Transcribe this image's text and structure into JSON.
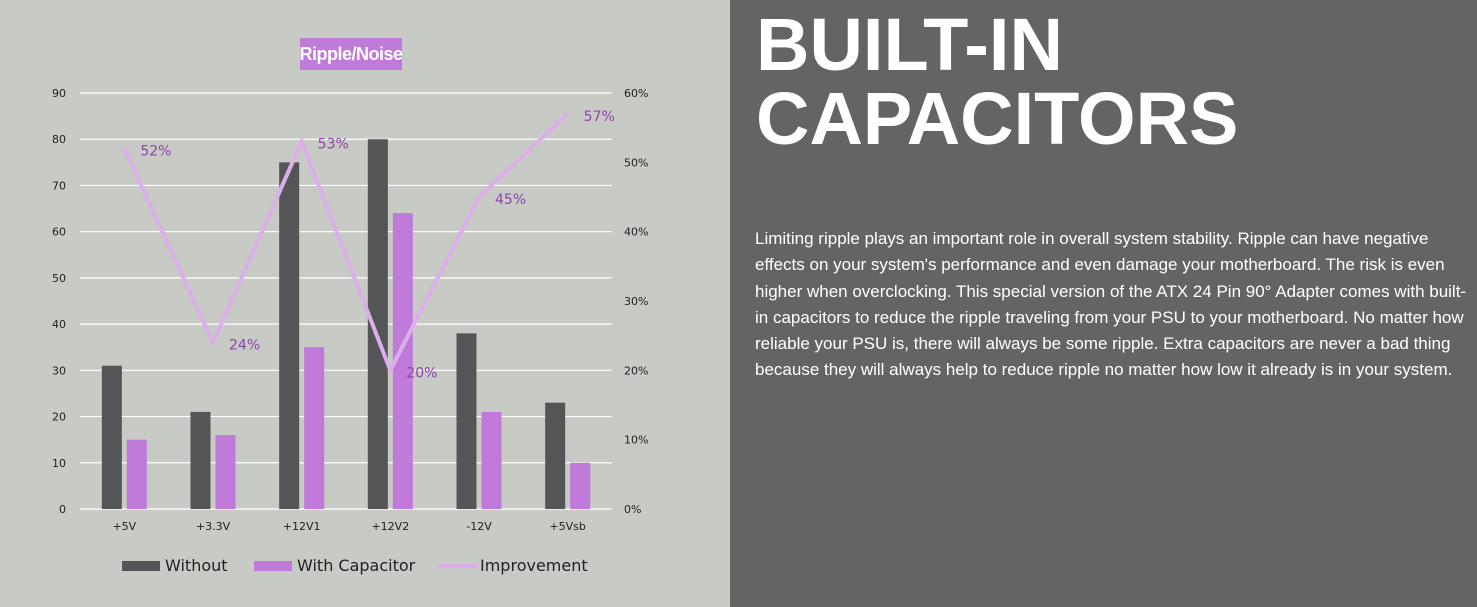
{
  "chart_data": {
    "type": "bar",
    "title": "Ripple/Noise",
    "categories": [
      "+5V",
      "+3.3V",
      "+12V1",
      "+12V2",
      "-12V",
      "+5Vsb"
    ],
    "series": [
      {
        "name": "Without",
        "type": "bar",
        "values": [
          31,
          21,
          75,
          80,
          38,
          23
        ],
        "color": "#545557"
      },
      {
        "name": "With Capacitor",
        "type": "bar",
        "values": [
          15,
          16,
          35,
          64,
          21,
          10
        ],
        "color": "#c07ad9"
      },
      {
        "name": "Improvement",
        "type": "line",
        "axis": "right",
        "values": [
          52,
          24,
          53,
          20,
          45,
          57
        ],
        "labels": [
          "52%",
          "24%",
          "53%",
          "20%",
          "45%",
          "57%"
        ],
        "color": "#dcaeea"
      }
    ],
    "y_left": {
      "min": 0,
      "max": 90,
      "ticks": [
        "0",
        "10",
        "20",
        "30",
        "40",
        "50",
        "60",
        "70",
        "80",
        "90"
      ]
    },
    "y_right": {
      "min": 0,
      "max": 60,
      "ticks": [
        "0%",
        "10%",
        "20%",
        "30%",
        "40%",
        "50%",
        "60%"
      ]
    },
    "grid": true,
    "legend": "bottom"
  },
  "heading": {
    "line1": "BUILT-IN",
    "line2": "CAPACITORS"
  },
  "body_text": "Limiting ripple plays an important role in overall system stability. Ripple can have negative effects on your system's performance and even damage your motherboard. The risk is even higher when overclocking. This special version of the ATX 24 Pin 90° Adapter comes with built-in capacitors to reduce the ripple traveling from your PSU to your motherboard. No matter how reliable your PSU is, there will always be some ripple. Extra capacitors are never a bad thing because they will always help to reduce ripple no matter how low it already is in your system.",
  "colors": {
    "left_bg": "#c8cac6",
    "right_bg": "#646464",
    "grid": "#ffffff",
    "label_purple": "#8e44ad"
  }
}
